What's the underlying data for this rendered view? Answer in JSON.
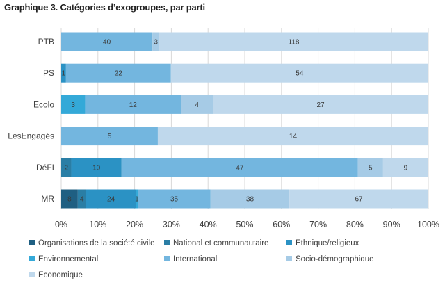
{
  "chart_data": {
    "type": "bar",
    "orientation": "horizontal",
    "stacked": "percent",
    "title": "Graphique 3. Catégories d’exogroupes, par parti",
    "categories": [
      "PTB",
      "PS",
      "Ecolo",
      "LesEngagés",
      "DéFI",
      "MR"
    ],
    "series": [
      {
        "name": "Organisations de la société civile",
        "color": "#1f5f82",
        "values": [
          0,
          0,
          0,
          0,
          0,
          8
        ]
      },
      {
        "name": "National et communautaire",
        "color": "#2a7ea5",
        "values": [
          0,
          0,
          0,
          0,
          2,
          4
        ]
      },
      {
        "name": "Ethnique/religieux",
        "color": "#2b92c4",
        "values": [
          0,
          1,
          0,
          0,
          10,
          24
        ]
      },
      {
        "name": "Environnemental",
        "color": "#34a9d8",
        "values": [
          0,
          0,
          3,
          0,
          0,
          1
        ]
      },
      {
        "name": "International",
        "color": "#73b6df",
        "values": [
          40,
          22,
          12,
          5,
          47,
          35
        ]
      },
      {
        "name": "Socio-démographique",
        "color": "#a6cbe6",
        "values": [
          3,
          0,
          4,
          0,
          5,
          38
        ]
      },
      {
        "name": "Economique",
        "color": "#bfd8ec",
        "values": [
          118,
          54,
          27,
          14,
          9,
          67
        ]
      }
    ],
    "x_ticks": [
      "0%",
      "10%",
      "20%",
      "30%",
      "40%",
      "50%",
      "60%",
      "70%",
      "80%",
      "90%",
      "100%"
    ],
    "xlim": [
      0,
      100
    ],
    "xgrid": true,
    "legend_position": "bottom"
  }
}
